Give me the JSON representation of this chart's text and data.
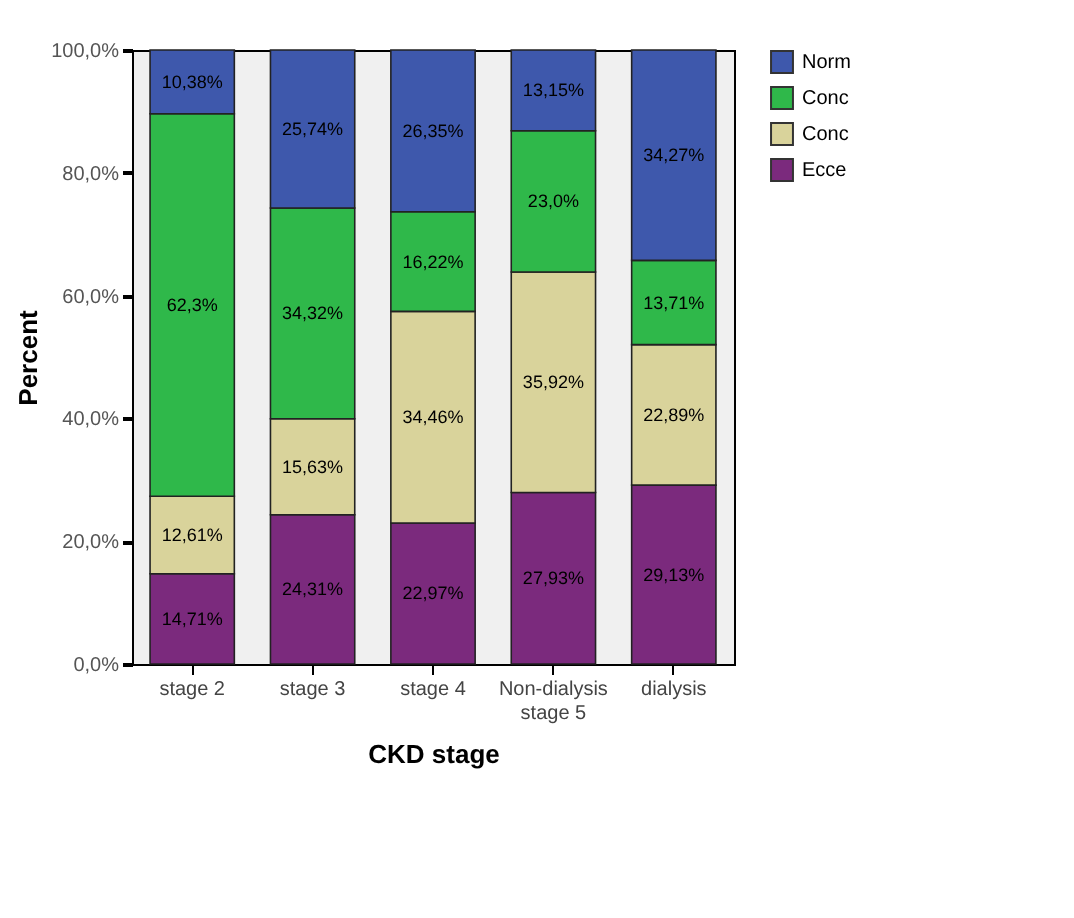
{
  "chart_data": {
    "type": "bar",
    "stacked": true,
    "xlabel": "CKD stage",
    "ylabel": "Percent",
    "categories": [
      "stage 2",
      "stage 3",
      "stage 4",
      "Non-dialysis stage 5",
      "dialysis"
    ],
    "series": [
      {
        "name": "Ecce",
        "color": "#7b2a7d",
        "values": [
          14.71,
          24.31,
          22.97,
          27.93,
          29.13
        ],
        "value_labels": [
          "14,71%",
          "24,31%",
          "22,97%",
          "27,93%",
          "29,13%"
        ]
      },
      {
        "name": "Conc",
        "color": "#d9d39b",
        "values": [
          12.61,
          15.63,
          34.46,
          35.92,
          22.89
        ],
        "value_labels": [
          "12,61%",
          "15,63%",
          "34,46%",
          "35,92%",
          "22,89%"
        ]
      },
      {
        "name": "Conc",
        "color": "#2fb84a",
        "values": [
          62.3,
          34.32,
          16.22,
          23.0,
          13.71
        ],
        "value_labels": [
          "62,3%",
          "34,32%",
          "16,22%",
          "23,0%",
          "13,71%"
        ]
      },
      {
        "name": "Norm",
        "color": "#3e58ac",
        "values": [
          10.38,
          25.74,
          26.35,
          13.15,
          34.27
        ],
        "value_labels": [
          "10,38%",
          "25,74%",
          "26,35%",
          "13,15%",
          "34,27%"
        ]
      }
    ],
    "ylim": [
      0,
      100
    ],
    "yticks": [
      {
        "value": 0,
        "label": "0,0%"
      },
      {
        "value": 20,
        "label": "20,0%"
      },
      {
        "value": 40,
        "label": "40,0%"
      },
      {
        "value": 60,
        "label": "60,0%"
      },
      {
        "value": 80,
        "label": "80,0%"
      },
      {
        "value": 100,
        "label": "100,0%"
      }
    ],
    "legend": "top right"
  }
}
